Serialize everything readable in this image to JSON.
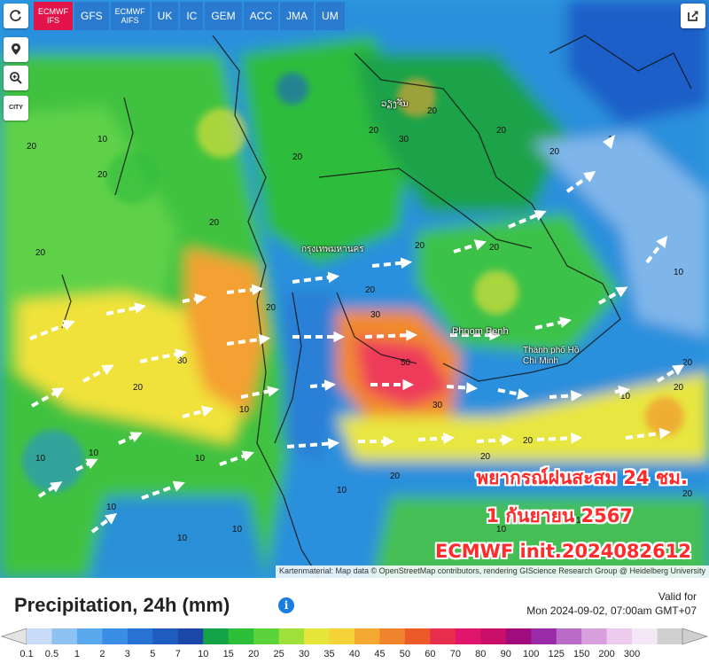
{
  "models": [
    "ECMWF\nIFS",
    "GFS",
    "ECMWF\nAIFS",
    "UK",
    "IC",
    "GEM",
    "ACC",
    "JMA",
    "UM"
  ],
  "controls": {
    "city": "CITY"
  },
  "map": {
    "cities": [
      "กรุงเทพมหานคร",
      "ວຽງຈັນ",
      "Phnom Penh",
      "Thành phố Hồ Chí Minh"
    ],
    "attribution": "Kartenmaterial: Map data © OpenStreetMap contributors, rendering GIScience Research Group @ Heidelberg University"
  },
  "overlay": {
    "line1": "พยากรณ์ฝนสะสม 24 ชม.",
    "line2": "1 กันยายน 2567",
    "line3": "ECMWF init.2024082612"
  },
  "legend": {
    "title": "Precipitation, 24h (mm)",
    "valid_label": "Valid for",
    "valid_time": "Mon 2024-09-02, 07:00am GMT+07",
    "ticks": [
      "0.1",
      "0.5",
      "1",
      "2",
      "3",
      "5",
      "7",
      "10",
      "15",
      "20",
      "25",
      "30",
      "35",
      "40",
      "45",
      "50",
      "60",
      "70",
      "80",
      "90",
      "100",
      "125",
      "150",
      "200",
      "300"
    ],
    "colors": [
      "#c8dcf7",
      "#8ec2f2",
      "#5aa8ee",
      "#3b8ee6",
      "#2773d4",
      "#1f5cc0",
      "#1b47a8",
      "#15a34a",
      "#2dbf3a",
      "#5ad43a",
      "#9fe03a",
      "#e6e63a",
      "#f5d238",
      "#f5a832",
      "#f0832c",
      "#ec5a2a",
      "#e82e4e",
      "#e0166c",
      "#c8106a",
      "#a00c7c",
      "#9a2aa8",
      "#b86cc8",
      "#d9a0de",
      "#eccbef",
      "#f5e6f8",
      "#d0d0d0"
    ]
  }
}
